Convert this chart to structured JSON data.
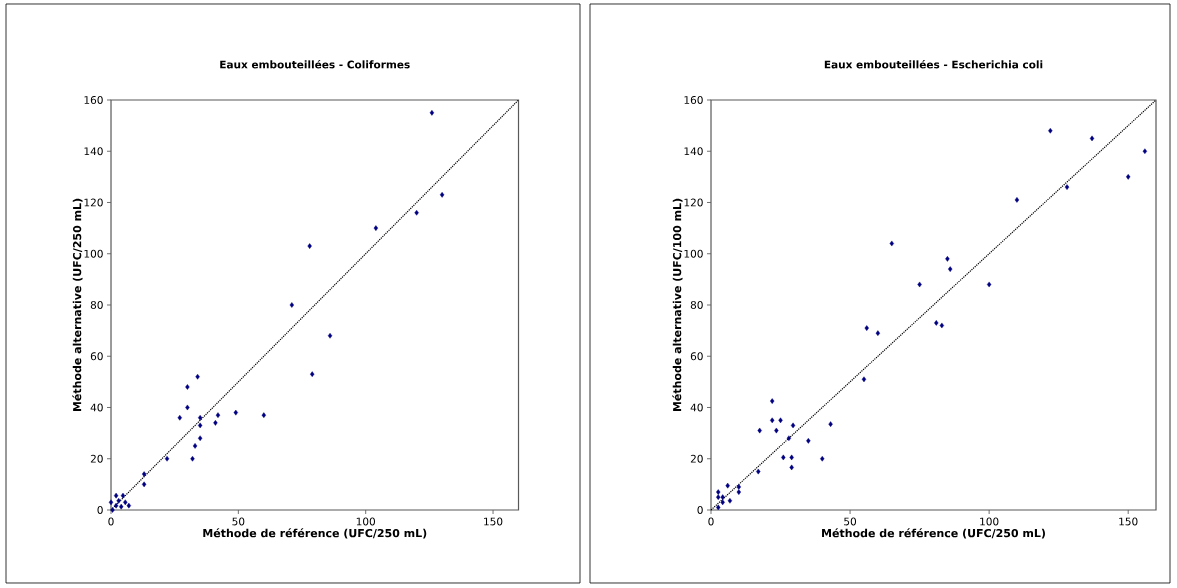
{
  "chart_data": [
    {
      "type": "scatter",
      "title": "Eaux embouteillées - Coliformes",
      "xlabel": "Méthode de référence (UFC/250 mL)",
      "ylabel": "Méthode alternative (UFC/250 mL)",
      "xlim": [
        0,
        160
      ],
      "ylim": [
        0,
        160
      ],
      "xticks": [
        0,
        50,
        100,
        150
      ],
      "yticks": [
        0,
        20,
        40,
        60,
        80,
        100,
        120,
        140,
        160
      ],
      "marker": "diamond",
      "series": [
        {
          "color": "#000080",
          "x": [
            126,
            130,
            120,
            104,
            78,
            71,
            86,
            79,
            34,
            30,
            30,
            27,
            35,
            42,
            49,
            60,
            35,
            41,
            35,
            33,
            32,
            22,
            13,
            13,
            0.6,
            0,
            2,
            4.7,
            2,
            4,
            5.6,
            7,
            3
          ],
          "values": [
            155,
            123,
            116,
            110,
            103,
            80,
            68,
            53,
            52,
            48,
            40,
            36,
            36,
            37,
            38,
            37,
            33,
            34,
            28,
            25,
            20,
            20,
            14,
            10,
            0,
            3,
            5.6,
            5.6,
            1.7,
            1.3,
            3,
            1.7,
            3.6
          ]
        },
        {
          "type": "line",
          "color": "#000000",
          "line_style": "dotted",
          "marker": "none",
          "x": [
            0,
            160
          ],
          "values": [
            0,
            160
          ]
        }
      ]
    },
    {
      "type": "scatter",
      "title": "Eaux embouteillées - Escherichia coli",
      "xlabel": "Méthode de référence (UFC/250 mL)",
      "ylabel": "Méthode alternative (UFC/100 mL)",
      "xlim": [
        0,
        160
      ],
      "ylim": [
        0,
        160
      ],
      "xticks": [
        0,
        50,
        100,
        150
      ],
      "yticks": [
        0,
        20,
        40,
        60,
        80,
        100,
        120,
        140,
        160
      ],
      "marker": "diamond",
      "series": [
        {
          "color": "#000080",
          "x": [
            122,
            137,
            156,
            150,
            128,
            110,
            65,
            85,
            86,
            75,
            100,
            81,
            83,
            56,
            60,
            55,
            22,
            22,
            25,
            23.5,
            17.5,
            29.5,
            43,
            28,
            35,
            26,
            29,
            40,
            29,
            17,
            10,
            10,
            6,
            2.6,
            2.6,
            4.2,
            6.8,
            4.2,
            2.6
          ],
          "values": [
            148,
            145,
            140,
            130,
            126,
            121,
            104,
            98,
            94,
            88,
            88,
            73,
            72,
            71,
            69,
            51,
            42.5,
            35,
            35,
            31,
            31,
            33,
            33.5,
            28,
            27,
            20.5,
            20.5,
            20,
            16.6,
            15,
            9,
            7,
            9.5,
            7,
            5,
            5,
            3.6,
            3,
            1
          ]
        },
        {
          "type": "line",
          "color": "#000000",
          "line_style": "dotted",
          "marker": "none",
          "x": [
            0,
            160
          ],
          "values": [
            0,
            160
          ]
        }
      ]
    }
  ]
}
